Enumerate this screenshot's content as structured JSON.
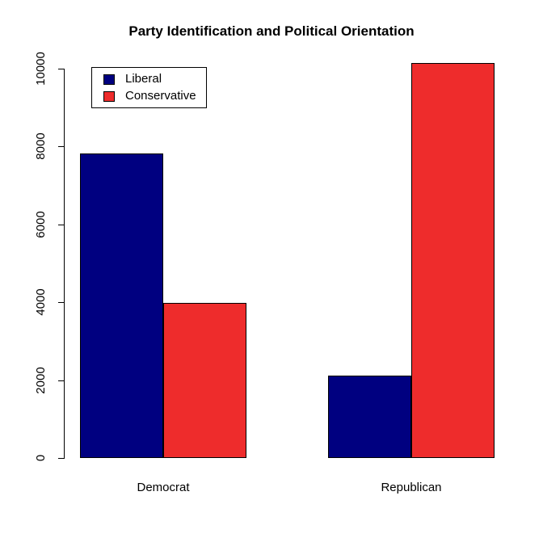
{
  "chart_data": {
    "type": "bar",
    "title": "Party Identification and Political Orientation",
    "categories": [
      "Democrat",
      "Republican"
    ],
    "series": [
      {
        "name": "Liberal",
        "color": "#000080",
        "values": [
          7820,
          2120
        ]
      },
      {
        "name": "Conservative",
        "color": "#EE2C2C",
        "values": [
          3980,
          10140
        ]
      }
    ],
    "xlabel": "",
    "ylabel": "",
    "ylim": [
      0,
      10000
    ],
    "yticks": [
      0,
      2000,
      4000,
      6000,
      8000,
      10000
    ],
    "ytick_labels": [
      "0",
      "2000",
      "4000",
      "6000",
      "8000",
      "10000"
    ],
    "grid": false,
    "legend_position": "top-left",
    "grouped": true,
    "background": "#FFFFFF",
    "bar_border_color": "#000000"
  }
}
